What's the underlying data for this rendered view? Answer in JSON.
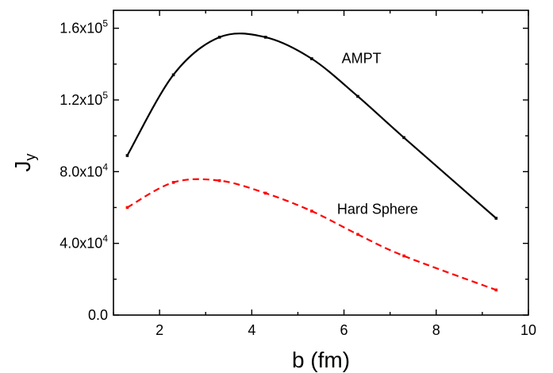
{
  "chart_data": {
    "type": "line",
    "xlabel": "b (fm)",
    "ylabel_main": "J",
    "ylabel_sub": "y",
    "xlim": [
      1,
      10
    ],
    "ylim": [
      0,
      170000
    ],
    "x_ticks": [
      2,
      4,
      6,
      8,
      10
    ],
    "x_tick_labels": [
      "2",
      "4",
      "6",
      "8",
      "10"
    ],
    "y_ticks": [
      {
        "value": 0,
        "mantissa": "0.0",
        "exp": ""
      },
      {
        "value": 40000,
        "mantissa": "4.0x10",
        "exp": "4"
      },
      {
        "value": 80000,
        "mantissa": "8.0x10",
        "exp": "4"
      },
      {
        "value": 120000,
        "mantissa": "1.2x10",
        "exp": "5"
      },
      {
        "value": 160000,
        "mantissa": "1.6x10",
        "exp": "5"
      }
    ],
    "grid": false,
    "series": [
      {
        "name": "AMPT",
        "color": "#000000",
        "dash": "solid",
        "x": [
          1.3,
          2.3,
          3.3,
          4.3,
          5.3,
          6.3,
          7.3,
          9.3
        ],
        "values": [
          89000,
          134000,
          155000,
          155000,
          143000,
          122000,
          99000,
          54000
        ]
      },
      {
        "name": "Hard Sphere",
        "color": "#ff0000",
        "dash": "dashed",
        "x": [
          1.3,
          2.3,
          3.3,
          4.3,
          5.3,
          6.3,
          7.3,
          9.3
        ],
        "values": [
          60000,
          74000,
          75000,
          68000,
          58000,
          45000,
          33000,
          14000
        ]
      }
    ]
  }
}
